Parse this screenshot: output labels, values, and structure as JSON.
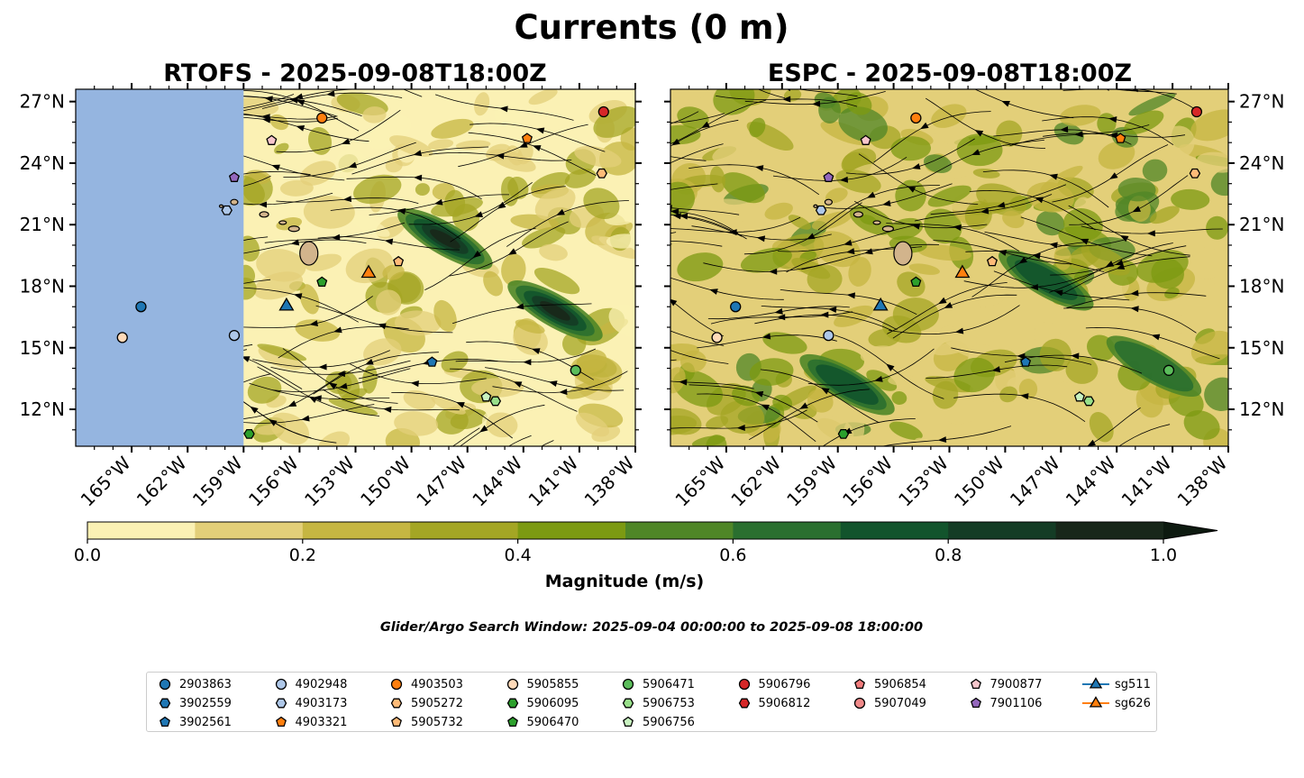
{
  "figure": {
    "suptitle": "Currents (0 m)",
    "search_window": "Glider/Argo Search Window: 2025-09-04 00:00:00 to 2025-09-08 18:00:00"
  },
  "chart_data": [
    {
      "type": "heatmap",
      "panel": "left",
      "title": "RTOFS - 2025-09-08T18:00Z",
      "xlim": [
        -168,
        -138
      ],
      "ylim": [
        10.2,
        27.6
      ],
      "x_ticks": [
        -165,
        -162,
        -159,
        -156,
        -153,
        -150,
        -147,
        -144,
        -141,
        -138
      ],
      "x_tick_labels": [
        "165°W",
        "162°W",
        "159°W",
        "156°W",
        "153°W",
        "150°W",
        "147°W",
        "144°W",
        "141°W",
        "138°W"
      ],
      "y_ticks": [
        12,
        15,
        18,
        21,
        24,
        27
      ],
      "y_tick_labels": [
        "12°N",
        "15°N",
        "18°N",
        "21°N",
        "24°N",
        "27°N"
      ],
      "y_axis_side": "left",
      "no_data_west_of_lon": -159,
      "field": "surface current magnitude (m/s) with streamlines",
      "high_speed_features": [
        {
          "lon": -148.2,
          "lat": 20.3,
          "magnitude": 0.9
        },
        {
          "lon": -142.3,
          "lat": 16.8,
          "magnitude": 0.95
        }
      ]
    },
    {
      "type": "heatmap",
      "panel": "right",
      "title": "ESPC - 2025-09-08T18:00Z",
      "xlim": [
        -168,
        -138
      ],
      "ylim": [
        10.2,
        27.6
      ],
      "x_ticks": [
        -165,
        -162,
        -159,
        -156,
        -153,
        -150,
        -147,
        -144,
        -141,
        -138
      ],
      "x_tick_labels": [
        "165°W",
        "162°W",
        "159°W",
        "156°W",
        "153°W",
        "150°W",
        "147°W",
        "144°W",
        "141°W",
        "138°W"
      ],
      "y_ticks": [
        12,
        15,
        18,
        21,
        24,
        27
      ],
      "y_tick_labels": [
        "12°N",
        "15°N",
        "18°N",
        "21°N",
        "24°N",
        "27°N"
      ],
      "y_axis_side": "right",
      "field": "surface current magnitude (m/s) with streamlines",
      "high_speed_features": [
        {
          "lon": -158.5,
          "lat": 13.2,
          "magnitude": 0.7
        },
        {
          "lon": -147.8,
          "lat": 18.3,
          "magnitude": 0.7
        },
        {
          "lon": -142.0,
          "lat": 14.1,
          "magnitude": 0.65
        }
      ]
    }
  ],
  "floats": [
    {
      "id": "2903863",
      "marker": "circle",
      "color": "#1f77b4",
      "lon": -164.5,
      "lat": 17.0
    },
    {
      "id": "3902559",
      "marker": "hexagon",
      "color": "#1f77b4",
      "lon": null,
      "lat": null
    },
    {
      "id": "3902561",
      "marker": "pentagon",
      "color": "#1f77b4",
      "lon": -148.9,
      "lat": 14.3
    },
    {
      "id": "4902948",
      "marker": "circle",
      "color": "#aec7e8",
      "lon": -159.5,
      "lat": 15.6
    },
    {
      "id": "4903173",
      "marker": "hexagon",
      "color": "#aec7e8",
      "lon": -159.9,
      "lat": 21.7
    },
    {
      "id": "4903321",
      "marker": "pentagon",
      "color": "#ff7f0e",
      "lon": -143.8,
      "lat": 25.2
    },
    {
      "id": "4903503",
      "marker": "circle",
      "color": "#ff7f0e",
      "lon": -154.8,
      "lat": 26.2
    },
    {
      "id": "5905272",
      "marker": "hexagon",
      "color": "#ffbb78",
      "lon": -139.8,
      "lat": 23.5
    },
    {
      "id": "5905732",
      "marker": "pentagon",
      "color": "#ffbb78",
      "lon": -150.7,
      "lat": 19.2
    },
    {
      "id": "5905855",
      "marker": "circle",
      "color": "#ffdab9",
      "lon": -165.5,
      "lat": 15.5
    },
    {
      "id": "5906095",
      "marker": "hexagon",
      "color": "#2ca02c",
      "lon": -158.7,
      "lat": 10.8
    },
    {
      "id": "5906470",
      "marker": "pentagon",
      "color": "#2ca02c",
      "lon": -154.8,
      "lat": 18.2
    },
    {
      "id": "5906471",
      "marker": "circle",
      "color": "#5bbd5b",
      "lon": -141.2,
      "lat": 13.9
    },
    {
      "id": "5906753",
      "marker": "hexagon",
      "color": "#98df8a",
      "lon": -145.5,
      "lat": 12.4
    },
    {
      "id": "5906756",
      "marker": "pentagon",
      "color": "#c8f2c0",
      "lon": -146.0,
      "lat": 12.6
    },
    {
      "id": "5906796",
      "marker": "circle",
      "color": "#d62728",
      "lon": -139.7,
      "lat": 26.5
    },
    {
      "id": "5906812",
      "marker": "hexagon",
      "color": "#d62728",
      "lon": null,
      "lat": null
    },
    {
      "id": "5906854",
      "marker": "pentagon",
      "color": "#f27c7c",
      "lon": null,
      "lat": null
    },
    {
      "id": "5907049",
      "marker": "circle",
      "color": "#f08a8a",
      "lon": null,
      "lat": null
    },
    {
      "id": "7900877",
      "marker": "pentagon",
      "color": "#f7c6cc",
      "lon": -157.5,
      "lat": 25.1
    },
    {
      "id": "7901106",
      "marker": "pentagon",
      "color": "#9467bd",
      "lon": -159.5,
      "lat": 23.3
    },
    {
      "id": "sg511",
      "marker": "triangle",
      "color": "#1f77b4",
      "lon": -156.7,
      "lat": 17.1
    },
    {
      "id": "sg626",
      "marker": "triangle",
      "color": "#ff7f0e",
      "lon": -152.3,
      "lat": 18.7
    }
  ],
  "colorbar": {
    "label": "Magnitude (m/s)",
    "min": 0.0,
    "max": 1.0,
    "levels": [
      0.0,
      0.1,
      0.2,
      0.3,
      0.4,
      0.5,
      0.6,
      0.7,
      0.8,
      0.9,
      1.0
    ],
    "colors": [
      "#fbf1b4",
      "#e3cf79",
      "#c6b642",
      "#a4a624",
      "#7c9a12",
      "#4f8627",
      "#2a6f2f",
      "#12542c",
      "#143c25",
      "#18271a"
    ],
    "extend_color": "#0d1a10",
    "tick_values": [
      0.0,
      0.2,
      0.4,
      0.6,
      0.8,
      1.0
    ],
    "tick_labels": [
      "0.0",
      "0.2",
      "0.4",
      "0.6",
      "0.8",
      "1.0"
    ]
  },
  "style": {
    "land_color": "#d2b48c",
    "nodata_color": "#95b5e0"
  },
  "legend": {
    "columns": [
      [
        "2903863",
        "3902559",
        "3902561"
      ],
      [
        "4902948",
        "4903173",
        "4903321"
      ],
      [
        "4903503",
        "5905272",
        "5905732"
      ],
      [
        "5905855",
        "5906095",
        "5906470"
      ],
      [
        "5906471",
        "5906753",
        "5906756"
      ],
      [
        "5906796",
        "5906812"
      ],
      [
        "5906854",
        "5907049"
      ],
      [
        "7900877",
        "7901106"
      ],
      [
        "sg511",
        "sg626"
      ]
    ]
  }
}
